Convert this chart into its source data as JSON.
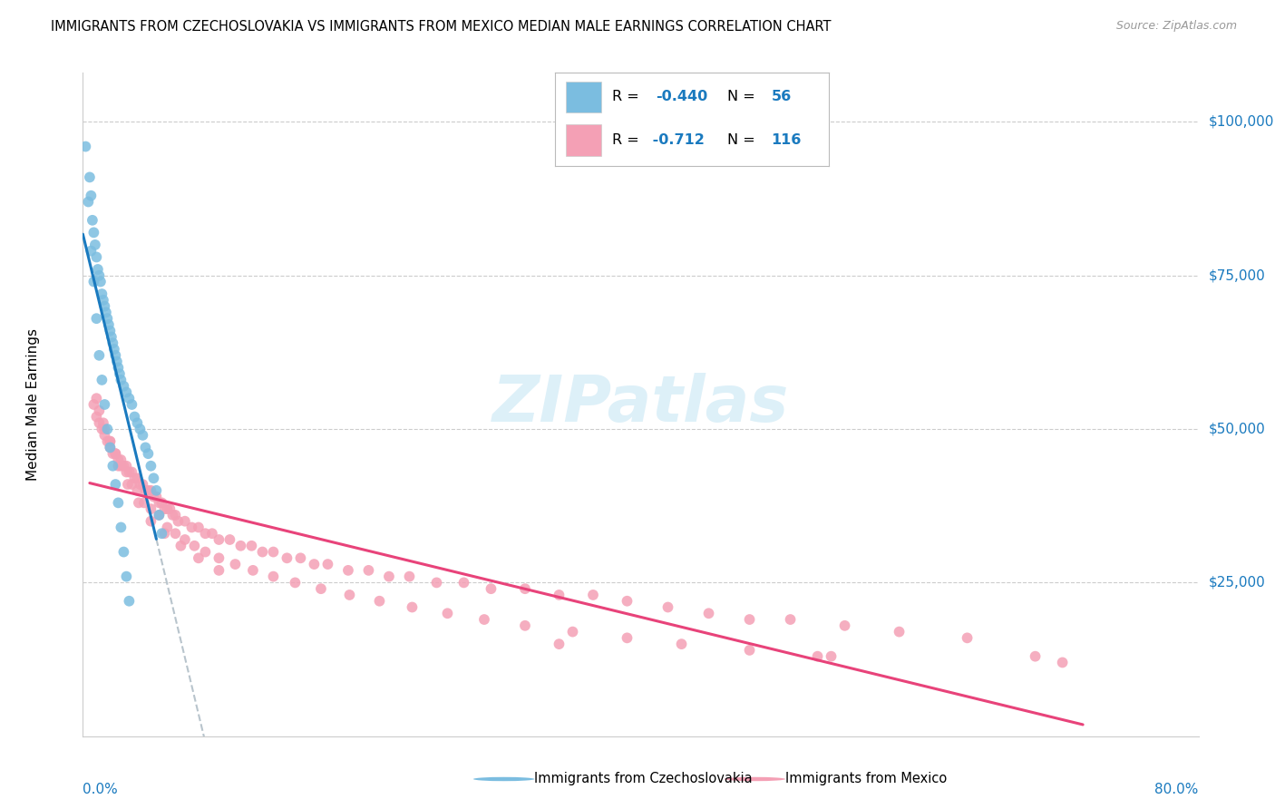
{
  "title": "IMMIGRANTS FROM CZECHOSLOVAKIA VS IMMIGRANTS FROM MEXICO MEDIAN MALE EARNINGS CORRELATION CHART",
  "source": "Source: ZipAtlas.com",
  "ylabel": "Median Male Earnings",
  "color_czech": "#7bbde0",
  "color_mexico": "#f4a0b5",
  "color_trend_czech": "#1a7abf",
  "color_trend_mexico": "#e8437a",
  "color_trend_ext": "#b8c4cc",
  "color_blue_label": "#1a7abf",
  "watermark_color": "#cce8f5",
  "scatter_czech_x": [
    0.002,
    0.005,
    0.006,
    0.007,
    0.008,
    0.009,
    0.01,
    0.011,
    0.012,
    0.013,
    0.014,
    0.015,
    0.016,
    0.017,
    0.018,
    0.019,
    0.02,
    0.021,
    0.022,
    0.023,
    0.024,
    0.025,
    0.026,
    0.027,
    0.028,
    0.03,
    0.032,
    0.034,
    0.036,
    0.038,
    0.04,
    0.042,
    0.044,
    0.046,
    0.048,
    0.05,
    0.052,
    0.054,
    0.056,
    0.058,
    0.004,
    0.006,
    0.008,
    0.01,
    0.012,
    0.014,
    0.016,
    0.018,
    0.02,
    0.022,
    0.024,
    0.026,
    0.028,
    0.03,
    0.032,
    0.034
  ],
  "scatter_czech_y": [
    96000,
    91000,
    88000,
    84000,
    82000,
    80000,
    78000,
    76000,
    75000,
    74000,
    72000,
    71000,
    70000,
    69000,
    68000,
    67000,
    66000,
    65000,
    64000,
    63000,
    62000,
    61000,
    60000,
    59000,
    58000,
    57000,
    56000,
    55000,
    54000,
    52000,
    51000,
    50000,
    49000,
    47000,
    46000,
    44000,
    42000,
    40000,
    36000,
    33000,
    87000,
    79000,
    74000,
    68000,
    62000,
    58000,
    54000,
    50000,
    47000,
    44000,
    41000,
    38000,
    34000,
    30000,
    26000,
    22000
  ],
  "scatter_mexico_x": [
    0.008,
    0.01,
    0.012,
    0.014,
    0.016,
    0.018,
    0.02,
    0.022,
    0.024,
    0.026,
    0.028,
    0.03,
    0.032,
    0.034,
    0.036,
    0.038,
    0.04,
    0.042,
    0.044,
    0.046,
    0.048,
    0.05,
    0.052,
    0.054,
    0.056,
    0.058,
    0.06,
    0.062,
    0.064,
    0.066,
    0.068,
    0.07,
    0.075,
    0.08,
    0.085,
    0.09,
    0.095,
    0.1,
    0.108,
    0.116,
    0.124,
    0.132,
    0.14,
    0.15,
    0.16,
    0.17,
    0.18,
    0.195,
    0.21,
    0.225,
    0.24,
    0.26,
    0.28,
    0.3,
    0.325,
    0.35,
    0.375,
    0.4,
    0.43,
    0.46,
    0.49,
    0.52,
    0.56,
    0.6,
    0.65,
    0.7,
    0.012,
    0.016,
    0.02,
    0.024,
    0.028,
    0.032,
    0.036,
    0.04,
    0.045,
    0.05,
    0.056,
    0.062,
    0.068,
    0.075,
    0.082,
    0.09,
    0.1,
    0.112,
    0.125,
    0.14,
    0.156,
    0.175,
    0.196,
    0.218,
    0.242,
    0.268,
    0.295,
    0.325,
    0.36,
    0.4,
    0.44,
    0.49,
    0.54,
    0.01,
    0.015,
    0.02,
    0.026,
    0.033,
    0.041,
    0.05,
    0.06,
    0.072,
    0.085,
    0.1,
    0.35,
    0.55,
    0.72
  ],
  "scatter_mexico_y": [
    54000,
    52000,
    51000,
    50000,
    49000,
    48000,
    47000,
    46000,
    46000,
    45000,
    45000,
    44000,
    44000,
    43000,
    43000,
    42000,
    42000,
    41000,
    41000,
    40000,
    40000,
    40000,
    39000,
    39000,
    38000,
    38000,
    37000,
    37000,
    37000,
    36000,
    36000,
    35000,
    35000,
    34000,
    34000,
    33000,
    33000,
    32000,
    32000,
    31000,
    31000,
    30000,
    30000,
    29000,
    29000,
    28000,
    28000,
    27000,
    27000,
    26000,
    26000,
    25000,
    25000,
    24000,
    24000,
    23000,
    23000,
    22000,
    21000,
    20000,
    19000,
    19000,
    18000,
    17000,
    16000,
    13000,
    53000,
    50000,
    48000,
    46000,
    44000,
    43000,
    41000,
    40000,
    38000,
    37000,
    36000,
    34000,
    33000,
    32000,
    31000,
    30000,
    29000,
    28000,
    27000,
    26000,
    25000,
    24000,
    23000,
    22000,
    21000,
    20000,
    19000,
    18000,
    17000,
    16000,
    15000,
    14000,
    13000,
    55000,
    51000,
    48000,
    44000,
    41000,
    38000,
    35000,
    33000,
    31000,
    29000,
    27000,
    15000,
    13000,
    12000
  ],
  "ytick_values": [
    25000,
    50000,
    75000,
    100000
  ],
  "ytick_labels": [
    "$25,000",
    "$50,000",
    "$75,000",
    "$100,000"
  ],
  "xlim_data": [
    0.0,
    0.82
  ],
  "ylim_data": [
    0,
    108000
  ],
  "grid_color": "#cccccc",
  "trend_czech_x0": 0.0,
  "trend_czech_x1": 0.054,
  "trend_czech_ext_x1": 0.42,
  "trend_mexico_x0": 0.005,
  "trend_mexico_x1": 0.735
}
